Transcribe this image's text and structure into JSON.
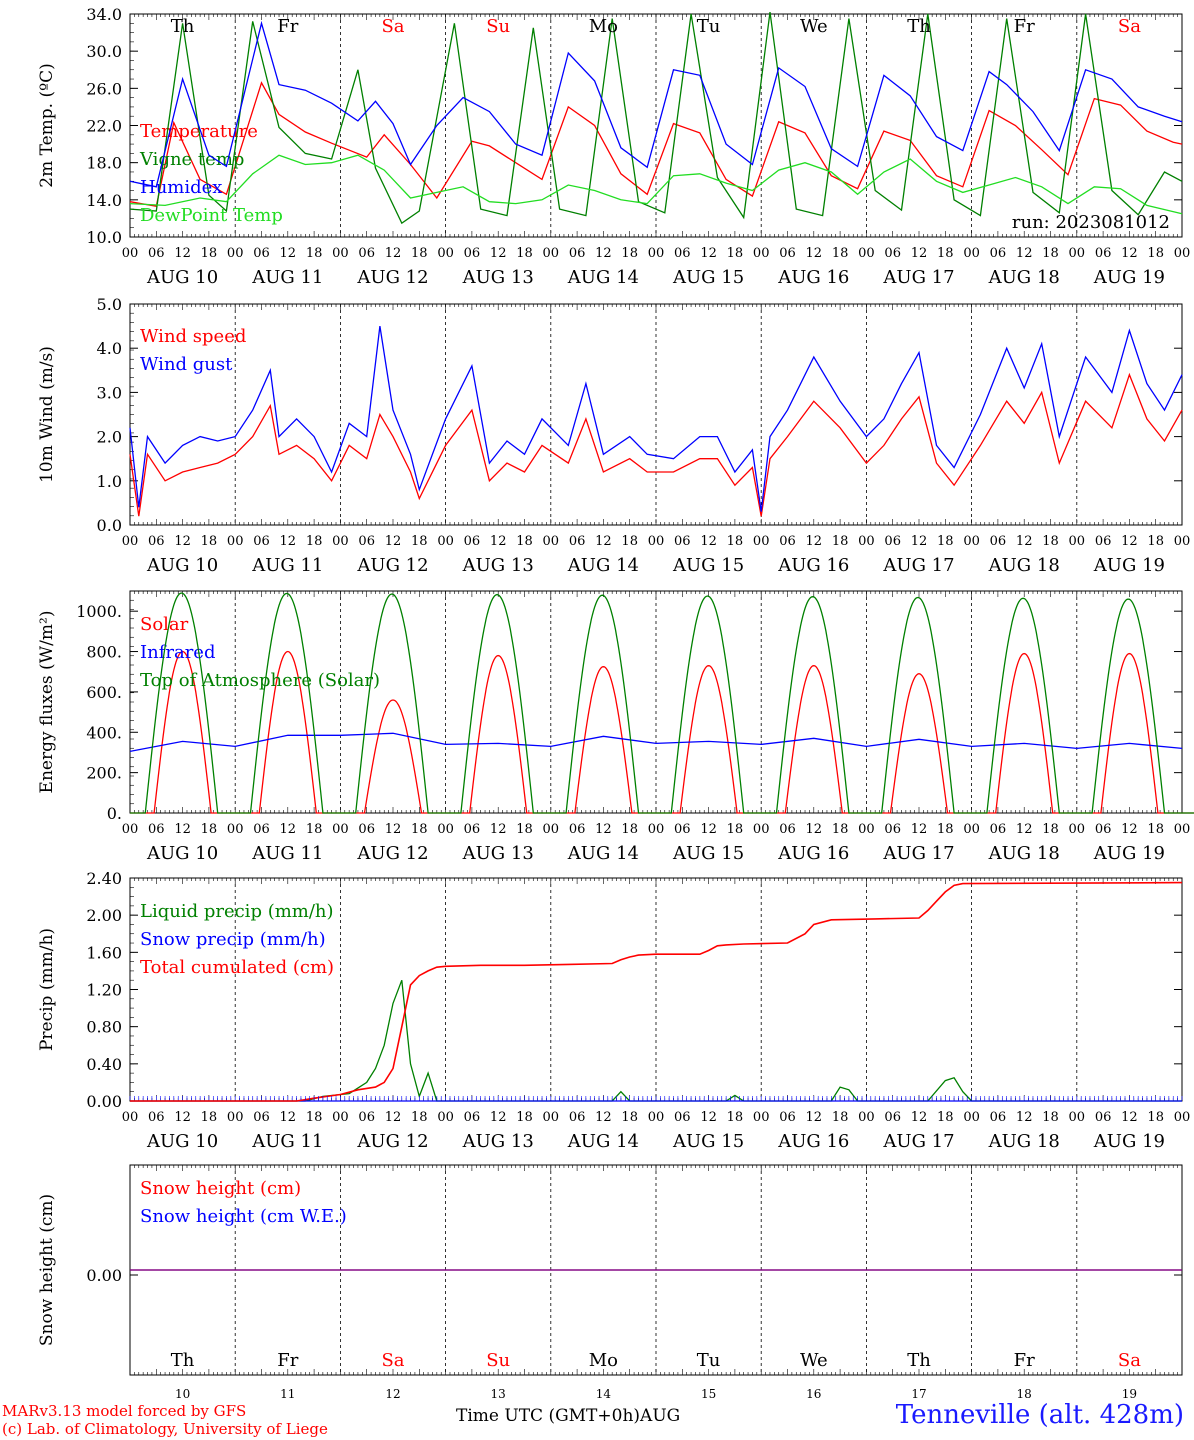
{
  "run_label": "run: 2023081012",
  "footer": {
    "model_line": "MARv3.13 model forced by GFS",
    "lab_line": "(c) Lab. of Climatology, University of Liege",
    "time_axis": "Time UTC (GMT+0h)",
    "month": "AUG",
    "station": "Tenneville (alt. 428m)"
  },
  "days": [
    "Th",
    "Fr",
    "Sa",
    "Su",
    "Mo",
    "Tu",
    "We",
    "Th",
    "Fr",
    "Sa"
  ],
  "weekend_days": [
    "Sa",
    "Su"
  ],
  "day_numbers": [
    "10",
    "11",
    "12",
    "13",
    "14",
    "15",
    "16",
    "17",
    "18",
    "19"
  ],
  "date_labels": [
    "AUG 10",
    "AUG 11",
    "AUG 12",
    "AUG 13",
    "AUG 14",
    "AUG 15",
    "AUG 16",
    "AUG 17",
    "AUG 18",
    "AUG 19"
  ],
  "hour_ticks": [
    "00",
    "06",
    "12",
    "18"
  ],
  "colors": {
    "red": "#ff0000",
    "green": "#008000",
    "blue": "#0000ff",
    "lightgreen": "#22dd22",
    "purple": "#800080",
    "weekend": "#ff0000",
    "weekday": "#000000",
    "station": "#1a1aff"
  },
  "chart_data": [
    {
      "type": "line",
      "ylabel": "2m Temp. (ºC)",
      "ylim": [
        10,
        34
      ],
      "yticks": [
        "10.0",
        "14.0",
        "18.0",
        "22.0",
        "26.0",
        "30.0",
        "34.0"
      ],
      "x_units": "hours since AUG 10 00 UTC",
      "series": [
        {
          "name": "Temperature",
          "color": "#ff0000",
          "x": [
            0,
            6,
            10,
            16,
            22,
            30,
            34,
            40,
            46,
            54,
            58,
            64,
            70,
            78,
            82,
            88,
            94,
            100,
            106,
            112,
            118,
            124,
            130,
            136,
            142,
            148,
            154,
            160,
            166,
            172,
            178,
            184,
            190,
            196,
            202,
            208,
            214,
            220,
            226,
            232,
            238,
            240
          ],
          "y": [
            13.8,
            13.3,
            22.3,
            16.2,
            14.6,
            26.6,
            23.2,
            21.3,
            20.1,
            18.6,
            21.0,
            17.8,
            14.2,
            20.3,
            19.8,
            18.0,
            16.2,
            24.0,
            22.0,
            16.8,
            14.6,
            22.2,
            21.2,
            16.2,
            14.4,
            22.4,
            21.2,
            16.6,
            15.2,
            21.4,
            20.4,
            16.6,
            15.4,
            23.6,
            22.0,
            19.4,
            16.7,
            24.9,
            24.2,
            21.4,
            20.2,
            20.0
          ]
        },
        {
          "name": "Vigne temp",
          "color": "#008000",
          "x": [
            0,
            6,
            12,
            18,
            22,
            28,
            34,
            40,
            46,
            52,
            56,
            62,
            66,
            74,
            80,
            86,
            92,
            98,
            104,
            110,
            116,
            122,
            128,
            134,
            140,
            146,
            152,
            158,
            164,
            170,
            176,
            182,
            188,
            194,
            200,
            206,
            212,
            218,
            224,
            230,
            236,
            240
          ],
          "y": [
            13.0,
            12.8,
            33.0,
            14.5,
            12.8,
            33.2,
            21.8,
            19.0,
            18.4,
            28.0,
            17.4,
            11.5,
            12.8,
            33.0,
            13.0,
            12.3,
            32.5,
            13.0,
            12.3,
            33.5,
            13.8,
            12.6,
            34.0,
            16.4,
            12.1,
            34.2,
            13.0,
            12.3,
            33.5,
            15.0,
            12.9,
            34.0,
            14.0,
            12.3,
            33.5,
            14.8,
            12.6,
            34.0,
            15.0,
            12.4,
            17.0,
            16.0
          ]
        },
        {
          "name": "Humidex",
          "color": "#0000ff",
          "x": [
            0,
            6,
            12,
            18,
            22,
            30,
            34,
            40,
            46,
            52,
            56,
            60,
            64,
            70,
            76,
            82,
            88,
            94,
            100,
            106,
            112,
            118,
            124,
            130,
            136,
            142,
            148,
            154,
            160,
            166,
            172,
            178,
            184,
            190,
            196,
            200,
            206,
            212,
            218,
            224,
            230,
            236,
            240
          ],
          "y": [
            16.0,
            15.4,
            27.0,
            18.8,
            17.6,
            33.0,
            26.4,
            25.8,
            24.4,
            22.5,
            24.6,
            22.2,
            17.8,
            22.0,
            25.0,
            23.5,
            20.0,
            18.8,
            29.8,
            26.8,
            19.6,
            17.5,
            28.0,
            27.4,
            20.0,
            17.8,
            28.2,
            26.2,
            19.5,
            17.6,
            27.4,
            25.2,
            20.8,
            19.3,
            27.8,
            26.4,
            23.5,
            19.3,
            28.0,
            27.0,
            24.0,
            23.0,
            22.4
          ]
        },
        {
          "name": "DewPoint Temp",
          "color": "#22dd22",
          "x": [
            0,
            8,
            16,
            22,
            28,
            34,
            40,
            46,
            52,
            58,
            64,
            70,
            76,
            82,
            88,
            94,
            100,
            106,
            112,
            118,
            124,
            130,
            136,
            142,
            148,
            154,
            160,
            166,
            172,
            178,
            184,
            190,
            196,
            202,
            208,
            214,
            220,
            226,
            232,
            240
          ],
          "y": [
            13.6,
            13.4,
            14.2,
            13.8,
            16.8,
            18.8,
            17.8,
            18.0,
            18.8,
            17.2,
            14.2,
            14.8,
            15.4,
            13.8,
            13.6,
            14.0,
            15.6,
            15.0,
            14.0,
            13.6,
            16.6,
            16.8,
            15.8,
            15.0,
            17.2,
            18.0,
            17.0,
            14.6,
            17.0,
            18.4,
            16.0,
            14.8,
            15.6,
            16.4,
            15.4,
            13.6,
            15.4,
            15.2,
            13.4,
            12.5
          ]
        }
      ]
    },
    {
      "type": "line",
      "ylabel": "10m Wind (m/s)",
      "ylim": [
        0,
        5
      ],
      "yticks": [
        "0.0",
        "1.0",
        "2.0",
        "3.0",
        "4.0",
        "5.0"
      ],
      "x_units": "hours since AUG 10 00 UTC",
      "series": [
        {
          "name": "Wind speed",
          "color": "#ff0000",
          "x": [
            0,
            2,
            4,
            8,
            12,
            16,
            20,
            24,
            28,
            32,
            34,
            38,
            42,
            46,
            50,
            54,
            57,
            60,
            64,
            66,
            72,
            78,
            82,
            86,
            90,
            94,
            100,
            104,
            108,
            114,
            118,
            124,
            130,
            134,
            138,
            142,
            144,
            146,
            150,
            156,
            162,
            168,
            172,
            176,
            180,
            184,
            188,
            194,
            200,
            204,
            208,
            212,
            218,
            224,
            228,
            232,
            236,
            240
          ],
          "y": [
            1.6,
            0.2,
            1.6,
            1.0,
            1.2,
            1.3,
            1.4,
            1.6,
            2.0,
            2.7,
            1.6,
            1.8,
            1.5,
            1.0,
            1.8,
            1.5,
            2.5,
            2.0,
            1.2,
            0.6,
            1.8,
            2.6,
            1.0,
            1.4,
            1.2,
            1.8,
            1.4,
            2.4,
            1.2,
            1.5,
            1.2,
            1.2,
            1.5,
            1.5,
            0.9,
            1.3,
            0.2,
            1.5,
            2.0,
            2.8,
            2.2,
            1.4,
            1.8,
            2.4,
            2.9,
            1.4,
            0.9,
            1.8,
            2.8,
            2.3,
            3.0,
            1.4,
            2.8,
            2.2,
            3.4,
            2.4,
            1.9,
            2.6
          ]
        },
        {
          "name": "Wind gust",
          "color": "#0000ff",
          "x": [
            0,
            2,
            4,
            8,
            12,
            16,
            20,
            24,
            28,
            32,
            34,
            38,
            42,
            46,
            50,
            54,
            57,
            60,
            64,
            66,
            72,
            78,
            82,
            86,
            90,
            94,
            100,
            104,
            108,
            114,
            118,
            124,
            130,
            134,
            138,
            142,
            144,
            146,
            150,
            156,
            162,
            168,
            172,
            176,
            180,
            184,
            188,
            194,
            200,
            204,
            208,
            212,
            218,
            224,
            228,
            232,
            236,
            240
          ],
          "y": [
            2.2,
            0.4,
            2.0,
            1.4,
            1.8,
            2.0,
            1.9,
            2.0,
            2.6,
            3.5,
            2.0,
            2.4,
            2.0,
            1.2,
            2.3,
            2.0,
            4.5,
            2.6,
            1.6,
            0.8,
            2.4,
            3.6,
            1.4,
            1.9,
            1.6,
            2.4,
            1.8,
            3.2,
            1.6,
            2.0,
            1.6,
            1.5,
            2.0,
            2.0,
            1.2,
            1.7,
            0.3,
            2.0,
            2.6,
            3.8,
            2.8,
            2.0,
            2.4,
            3.2,
            3.9,
            1.8,
            1.3,
            2.5,
            4.0,
            3.1,
            4.1,
            2.0,
            3.8,
            3.0,
            4.4,
            3.2,
            2.6,
            3.4
          ]
        }
      ]
    },
    {
      "type": "line",
      "ylabel": "Energy fluxes (W/m²)",
      "ylim": [
        0,
        1100
      ],
      "yticks": [
        "0.",
        "200.",
        "400.",
        "600.",
        "800.",
        "1000."
      ],
      "x_units": "hours since AUG 10 00 UTC",
      "series": [
        {
          "name": "Solar",
          "color": "#ff0000",
          "daily_peaks": [
            800,
            800,
            560,
            780,
            725,
            730,
            730,
            690,
            790,
            790
          ]
        },
        {
          "name": "Infrared",
          "color": "#0000ff",
          "x": [
            0,
            12,
            24,
            36,
            48,
            60,
            72,
            84,
            96,
            108,
            120,
            132,
            144,
            156,
            168,
            180,
            192,
            204,
            216,
            228,
            240
          ],
          "y": [
            305,
            355,
            330,
            385,
            385,
            395,
            340,
            345,
            330,
            380,
            345,
            355,
            340,
            370,
            330,
            365,
            330,
            345,
            320,
            345,
            320
          ]
        },
        {
          "name": "Top of Atmosphere (Solar)",
          "color": "#008000",
          "daily_peaks": [
            1090,
            1088,
            1085,
            1082,
            1079,
            1075,
            1072,
            1068,
            1064,
            1060
          ]
        }
      ]
    },
    {
      "type": "line",
      "ylabel": "Precip (mm/h)",
      "ylim": [
        0,
        2.4
      ],
      "yticks": [
        "0.00",
        "0.40",
        "0.80",
        "1.20",
        "1.60",
        "2.00",
        "2.40"
      ],
      "x_units": "hours since AUG 10 00 UTC",
      "series": [
        {
          "name": "Liquid precip (mm/h)",
          "color": "#008000",
          "x": [
            0,
            40,
            44,
            50,
            54,
            56,
            58,
            60,
            62,
            64,
            66,
            68,
            70,
            72,
            110,
            112,
            114,
            136,
            138,
            140,
            160,
            162,
            164,
            166,
            182,
            186,
            188,
            190,
            192,
            240
          ],
          "y": [
            0,
            0,
            0.05,
            0.08,
            0.2,
            0.35,
            0.6,
            1.05,
            1.3,
            0.4,
            0.05,
            0.3,
            0,
            0,
            0,
            0.1,
            0,
            0,
            0.06,
            0,
            0,
            0.15,
            0.12,
            0,
            0,
            0.22,
            0.25,
            0.1,
            0,
            0
          ]
        },
        {
          "name": "Snow precip (mm/h)",
          "color": "#0000ff",
          "x": [
            0,
            240
          ],
          "y": [
            0,
            0
          ]
        },
        {
          "name": "Total cumulated (cm)",
          "color": "#ff0000",
          "x": [
            0,
            38,
            42,
            48,
            52,
            56,
            58,
            60,
            62,
            64,
            66,
            68,
            70,
            72,
            80,
            90,
            100,
            110,
            112,
            114,
            116,
            120,
            130,
            132,
            134,
            136,
            140,
            150,
            154,
            156,
            160,
            170,
            180,
            182,
            184,
            186,
            188,
            190,
            240
          ],
          "y": [
            0,
            0,
            0.03,
            0.07,
            0.12,
            0.15,
            0.2,
            0.35,
            0.8,
            1.25,
            1.35,
            1.4,
            1.44,
            1.45,
            1.46,
            1.46,
            1.47,
            1.48,
            1.52,
            1.55,
            1.57,
            1.58,
            1.58,
            1.62,
            1.67,
            1.68,
            1.69,
            1.7,
            1.8,
            1.9,
            1.95,
            1.96,
            1.97,
            2.05,
            2.15,
            2.25,
            2.32,
            2.34,
            2.35
          ]
        }
      ]
    },
    {
      "type": "line",
      "ylabel": "Snow height (cm)",
      "yticks": [
        "0.00"
      ],
      "x_units": "hours since AUG 10 00 UTC",
      "series": [
        {
          "name": "Snow height (cm)",
          "color": "#ff0000",
          "x": [
            0,
            240
          ],
          "y": [
            0,
            0
          ]
        },
        {
          "name": "Snow height (cm W.E.)",
          "color": "#0000ff",
          "x": [
            0,
            240
          ],
          "y": [
            0,
            0
          ]
        }
      ]
    }
  ]
}
